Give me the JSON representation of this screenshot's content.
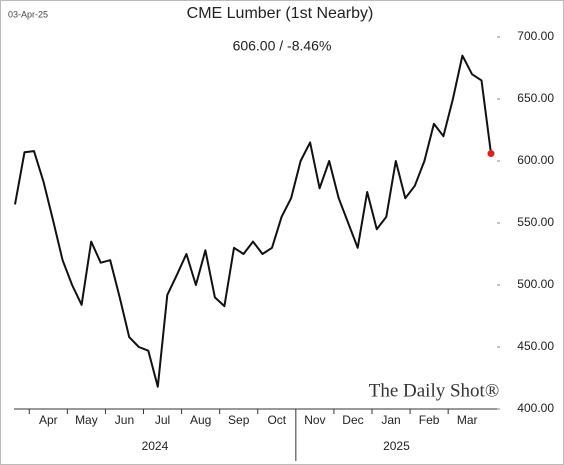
{
  "chart_data": {
    "type": "line",
    "title": "CME Lumber (1st Nearby)",
    "date": "03-Apr-25",
    "subtitle": "606.00  /  -8.46%",
    "watermark": "The Daily Shot®",
    "categories": [
      null,
      null,
      null,
      null,
      "Apr",
      null,
      null,
      null,
      "May",
      null,
      null,
      null,
      "Jun",
      null,
      null,
      null,
      "Jul",
      null,
      null,
      null,
      "Aug",
      null,
      null,
      null,
      "Sep",
      null,
      null,
      null,
      "Oct",
      null,
      null,
      null,
      "Nov",
      null,
      null,
      null,
      "Dec",
      null,
      null,
      null,
      "Jan",
      null,
      null,
      null,
      "Feb",
      null,
      null,
      null,
      "Mar",
      null,
      null
    ],
    "year_labels": [
      "2024",
      "2025"
    ],
    "series": [
      {
        "name": "CME Lumber",
        "color": "#111111",
        "values": [
          565,
          607,
          608,
          583,
          552,
          520,
          500,
          484,
          535,
          518,
          520,
          490,
          458,
          450,
          447,
          418,
          492,
          508,
          525,
          500,
          528,
          490,
          483,
          530,
          525,
          535,
          525,
          530,
          555,
          570,
          600,
          615,
          578,
          600,
          570,
          550,
          530,
          575,
          545,
          555,
          600,
          570,
          580,
          600,
          630,
          620,
          650,
          685,
          670,
          665,
          606
        ]
      }
    ],
    "last_point_color": "#e02020",
    "ylim": [
      400,
      700
    ],
    "yticks": [
      {
        "value": 400,
        "label": "400.00"
      },
      {
        "value": 450,
        "label": "450.00"
      },
      {
        "value": 500,
        "label": "500.00"
      },
      {
        "value": 550,
        "label": "550.00"
      },
      {
        "value": 600,
        "label": "600.00"
      },
      {
        "value": 650,
        "label": "650.00"
      },
      {
        "value": 700,
        "label": "700.00"
      }
    ]
  }
}
